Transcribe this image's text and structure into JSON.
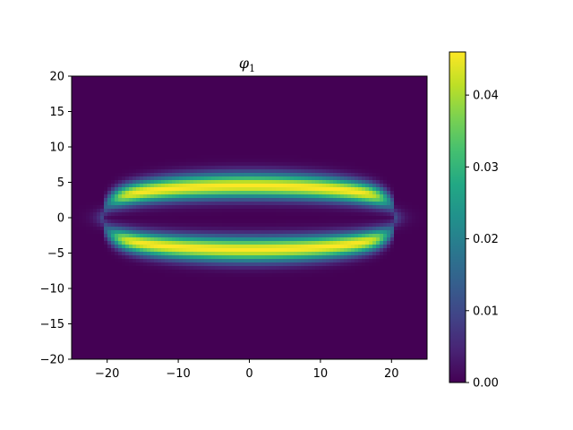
{
  "chart_data": {
    "type": "heatmap",
    "title": "φ",
    "title_subscript": "1",
    "xlim": [
      -25,
      25
    ],
    "ylim": [
      -20,
      20
    ],
    "xticks": [
      -20,
      -10,
      0,
      10,
      20
    ],
    "yticks": [
      -20,
      -15,
      -10,
      -5,
      0,
      5,
      10,
      15,
      20
    ],
    "colorbar": {
      "colormap": "viridis",
      "range": [
        0.0,
        0.046
      ],
      "ticks": [
        0.0,
        0.01,
        0.02,
        0.03,
        0.04
      ],
      "tick_labels": [
        "0.00",
        "0.01",
        "0.02",
        "0.03",
        "0.04"
      ]
    },
    "field": {
      "description_shape": "two elliptical bright bands symmetric about y=0",
      "band_center_y": 4.5,
      "band_x_half_extent": 20.5,
      "band_half_width": 1.7,
      "peak_value": 0.046
    }
  }
}
